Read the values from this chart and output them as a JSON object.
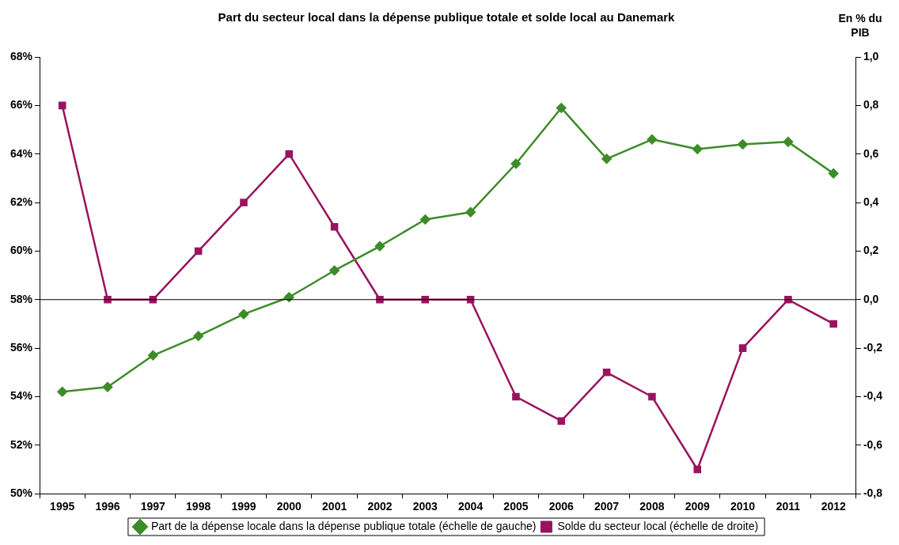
{
  "chart_data": {
    "type": "line",
    "title": "Part du secteur local dans la dépense publique totale et solde local au Danemark",
    "y2label": "En % du PIB",
    "categories": [
      "1995",
      "1996",
      "1997",
      "1998",
      "1999",
      "2000",
      "2001",
      "2002",
      "2003",
      "2004",
      "2005",
      "2006",
      "2007",
      "2008",
      "2009",
      "2010",
      "2011",
      "2012"
    ],
    "series": [
      {
        "name": "Part de la dépense locale dans la dépense publique totale (échelle de gauche)",
        "color": "#3c8c28",
        "marker": "diamond",
        "values": [
          54.2,
          54.4,
          55.7,
          56.5,
          57.4,
          58.1,
          59.2,
          60.2,
          61.3,
          61.6,
          63.6,
          65.9,
          63.8,
          64.6,
          64.2,
          64.4,
          64.5,
          63.2
        ]
      },
      {
        "name": "Solde du secteur local (échelle de droite)",
        "color": "#99145f",
        "marker": "square",
        "axis": "y2",
        "values": [
          0.8,
          0,
          0,
          0.2,
          0.4,
          0.6,
          0.3,
          0,
          0,
          0,
          -0.4,
          -0.5,
          -0.3,
          -0.4,
          -0.7,
          -0.2,
          0,
          -0.1
        ]
      }
    ],
    "ylim": [
      50,
      68
    ],
    "yticks": [
      {
        "value": 50,
        "label": "50%"
      },
      {
        "value": 52,
        "label": "52%"
      },
      {
        "value": 54,
        "label": "54%"
      },
      {
        "value": 56,
        "label": "56%"
      },
      {
        "value": 58,
        "label": "58%"
      },
      {
        "value": 60,
        "label": "60%"
      },
      {
        "value": 62,
        "label": "62%"
      },
      {
        "value": 64,
        "label": "64%"
      },
      {
        "value": 66,
        "label": "66%"
      },
      {
        "value": 68,
        "label": "68%"
      }
    ],
    "y2lim": [
      -0.8,
      1.0
    ],
    "y2ticks": [
      {
        "value": -0.8,
        "label": "-0,8"
      },
      {
        "value": -0.6,
        "label": "-0,6"
      },
      {
        "value": -0.4,
        "label": "-0,4"
      },
      {
        "value": -0.2,
        "label": "-0,2"
      },
      {
        "value": 0,
        "label": "0,0"
      },
      {
        "value": 0.2,
        "label": "0,2"
      },
      {
        "value": 0.4,
        "label": "0,4"
      },
      {
        "value": 0.6,
        "label": "0,6"
      },
      {
        "value": 0.8,
        "label": "0,8"
      },
      {
        "value": 1.0,
        "label": "1,0"
      }
    ],
    "ref_lines": [
      {
        "axis": "y2",
        "value": 0,
        "color": "#000000"
      }
    ],
    "grid": false,
    "legend": "bottom"
  }
}
